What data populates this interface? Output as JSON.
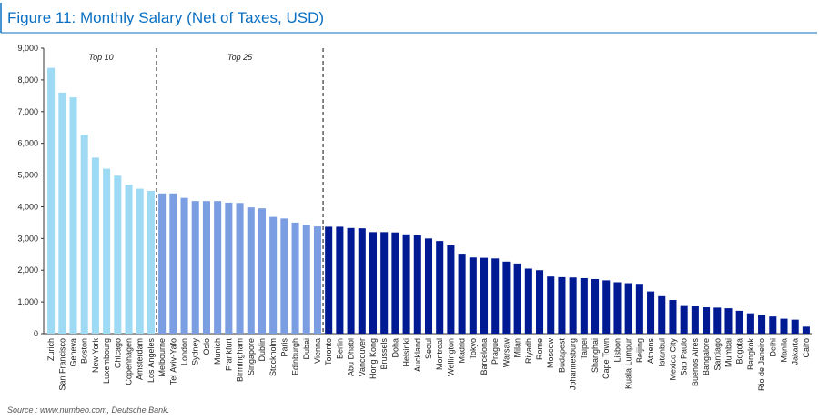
{
  "chart_data": {
    "type": "bar",
    "title": "Figure 11: Monthly Salary (Net of Taxes, USD)",
    "source": "Source : www.numbeo.com, Deutsche Bank.",
    "categories": [
      "Zurich",
      "San Francisco",
      "Geneva",
      "Boston",
      "New York",
      "Luxembourg",
      "Chicago",
      "Copenhagen",
      "Amsterdam",
      "Los Angeles",
      "Melbourne",
      "Tel Aviv-Yafo",
      "London",
      "Sydney",
      "Oslo",
      "Munich",
      "Frankfurt",
      "Birmingham",
      "Singapore",
      "Dublin",
      "Stockholm",
      "Paris",
      "Edinburgh",
      "Dubai",
      "Vienna",
      "Toronto",
      "Berlin",
      "Abu Dhabi",
      "Vancouver",
      "Hong Kong",
      "Brussels",
      "Doha",
      "Helsinki",
      "Auckland",
      "Seoul",
      "Montreal",
      "Wellington",
      "Madrid",
      "Tokyo",
      "Barcelona",
      "Prague",
      "Warsaw",
      "Milan",
      "Riyadh",
      "Rome",
      "Moscow",
      "Budapest",
      "Johannesburg",
      "Taipei",
      "Shanghai",
      "Cape Town",
      "Lisbon",
      "Kuala Lumpur",
      "Beijing",
      "Athens",
      "Istanbul",
      "Mexico City",
      "Sao Paulo",
      "Buenos Aires",
      "Bangalore",
      "Santiago",
      "Mumbai",
      "Bogota",
      "Bangkok",
      "Rio de Janeiro",
      "Delhi",
      "Manila",
      "Jakarta",
      "Cairo"
    ],
    "values": [
      8380,
      7600,
      7450,
      6270,
      5550,
      5200,
      4980,
      4700,
      4570,
      4500,
      4420,
      4420,
      4280,
      4180,
      4180,
      4180,
      4130,
      4120,
      3980,
      3950,
      3680,
      3630,
      3500,
      3420,
      3380,
      3370,
      3370,
      3330,
      3320,
      3200,
      3200,
      3190,
      3130,
      3100,
      3000,
      2920,
      2780,
      2520,
      2400,
      2390,
      2370,
      2270,
      2210,
      2050,
      2000,
      1800,
      1780,
      1770,
      1750,
      1720,
      1680,
      1620,
      1590,
      1570,
      1330,
      1180,
      1060,
      870,
      860,
      830,
      820,
      800,
      720,
      640,
      600,
      540,
      470,
      440,
      220
    ],
    "groups": [
      {
        "label": "Top 10",
        "size": 10,
        "color": "#9fdaf4"
      },
      {
        "label": "Top 25",
        "size": 15,
        "color": "#7b9ee2"
      },
      {
        "size": 44,
        "color": "#001a94"
      }
    ],
    "ylim": [
      0,
      9000
    ],
    "yticks": [
      0,
      {
        "value": 1000,
        "label": "1,000"
      },
      {
        "value": 2000,
        "label": "2,000"
      },
      {
        "value": 3000,
        "label": "3,000"
      },
      {
        "value": 4000,
        "label": "4,000"
      },
      {
        "value": 5000,
        "label": "5,000"
      },
      {
        "value": 6000,
        "label": "6,000"
      },
      {
        "value": 7000,
        "label": "7,000"
      },
      {
        "value": 8000,
        "label": "8,000"
      },
      {
        "value": 9000,
        "label": "9,000"
      }
    ]
  }
}
